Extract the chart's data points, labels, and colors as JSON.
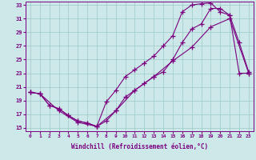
{
  "xlabel": "Windchill (Refroidissement éolien,°C)",
  "xlim": [
    -0.5,
    23.5
  ],
  "ylim": [
    14.5,
    33.5
  ],
  "xticks": [
    0,
    1,
    2,
    3,
    4,
    5,
    6,
    7,
    8,
    9,
    10,
    11,
    12,
    13,
    14,
    15,
    16,
    17,
    18,
    19,
    20,
    21,
    22,
    23
  ],
  "yticks": [
    15,
    17,
    19,
    21,
    23,
    25,
    27,
    29,
    31,
    33
  ],
  "line_color": "#7b0080",
  "bg_color": "#cce8e8",
  "line1_x": [
    0,
    1,
    2,
    3,
    4,
    5,
    6,
    7,
    8,
    9,
    10,
    11,
    12,
    13,
    14,
    15,
    16,
    17,
    18,
    19,
    20,
    21,
    22,
    23
  ],
  "line1_y": [
    20.2,
    20.0,
    18.3,
    17.8,
    16.8,
    16.0,
    15.7,
    15.2,
    16.0,
    17.5,
    19.5,
    20.5,
    21.5,
    22.5,
    23.2,
    25.0,
    27.5,
    29.5,
    30.2,
    32.5,
    32.5,
    31.5,
    23.0,
    23.0
  ],
  "line2_x": [
    0,
    1,
    2,
    3,
    4,
    5,
    6,
    7,
    8,
    9,
    10,
    11,
    12,
    13,
    14,
    15,
    16,
    17,
    18,
    19,
    20,
    21,
    22,
    23
  ],
  "line2_y": [
    20.2,
    20.0,
    18.3,
    17.8,
    16.8,
    16.0,
    15.7,
    15.2,
    18.8,
    20.5,
    22.5,
    23.5,
    24.5,
    25.5,
    27.0,
    28.5,
    32.0,
    33.0,
    33.2,
    33.3,
    32.0,
    31.5,
    27.5,
    23.2
  ],
  "line3_x": [
    0,
    1,
    3,
    5,
    7,
    9,
    11,
    13,
    15,
    17,
    19,
    21,
    23
  ],
  "line3_y": [
    20.2,
    20.0,
    17.5,
    15.8,
    15.2,
    17.5,
    20.5,
    22.5,
    24.8,
    26.8,
    29.8,
    31.0,
    23.0
  ]
}
